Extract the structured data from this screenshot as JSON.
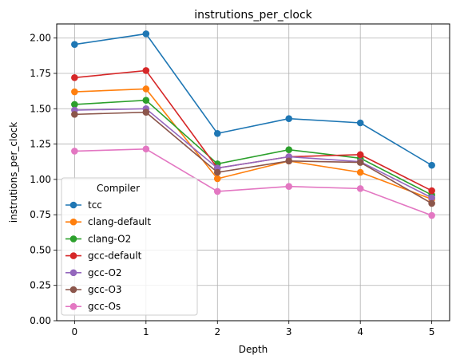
{
  "chart_data": {
    "type": "line",
    "title": "instrutions_per_clock",
    "xlabel": "Depth",
    "ylabel": "instrutions_per_clock",
    "x": [
      0,
      1,
      2,
      3,
      4,
      5
    ],
    "xticks": [
      "0",
      "1",
      "2",
      "3",
      "4",
      "5"
    ],
    "xlim": [
      -0.25,
      5.25
    ],
    "yticks": [
      "0.00",
      "0.25",
      "0.50",
      "0.75",
      "1.00",
      "1.25",
      "1.50",
      "1.75",
      "2.00"
    ],
    "ylim": [
      0,
      2.1
    ],
    "grid": true,
    "legend": {
      "title": "Compiler",
      "placement": "lower-left"
    },
    "series": [
      {
        "name": "tcc",
        "color": "#1f77b4",
        "values": [
          1.955,
          2.03,
          1.325,
          1.43,
          1.4,
          1.1
        ]
      },
      {
        "name": "clang-default",
        "color": "#ff7f0e",
        "values": [
          1.62,
          1.64,
          1.005,
          1.13,
          1.05,
          0.86
        ]
      },
      {
        "name": "clang-O2",
        "color": "#2ca02c",
        "values": [
          1.53,
          1.56,
          1.11,
          1.21,
          1.15,
          0.89
        ]
      },
      {
        "name": "gcc-default",
        "color": "#d62728",
        "values": [
          1.72,
          1.77,
          1.08,
          1.16,
          1.175,
          0.92
        ]
      },
      {
        "name": "gcc-O2",
        "color": "#9467bd",
        "values": [
          1.49,
          1.5,
          1.08,
          1.16,
          1.125,
          0.87
        ]
      },
      {
        "name": "gcc-O3",
        "color": "#8c564b",
        "values": [
          1.46,
          1.475,
          1.05,
          1.13,
          1.12,
          0.83
        ]
      },
      {
        "name": "gcc-Os",
        "color": "#e377c2",
        "values": [
          1.2,
          1.215,
          0.915,
          0.95,
          0.935,
          0.745
        ]
      }
    ]
  }
}
